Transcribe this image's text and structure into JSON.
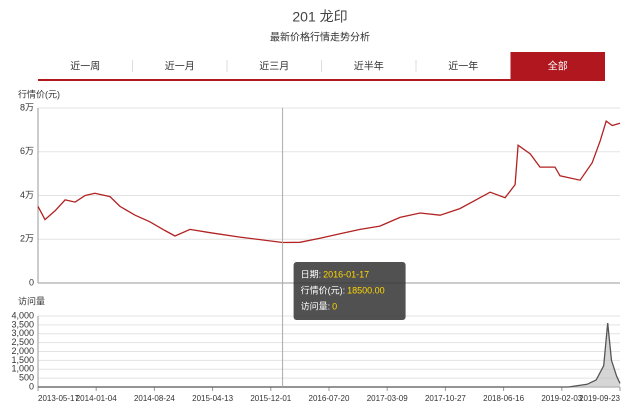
{
  "header": {
    "title": "201 龙印",
    "subtitle": "最新价格行情走势分析"
  },
  "tabs": [
    "近一周",
    "近一月",
    "近三月",
    "近半年",
    "近一年",
    "全部"
  ],
  "active_tab": 5,
  "tooltip": {
    "rows": [
      {
        "label": "日期:",
        "value": "2016-01-17"
      },
      {
        "label": "行情价(元):",
        "value": "18500.00"
      },
      {
        "label": "访问量:",
        "value": "0"
      }
    ]
  },
  "chart_data": [
    {
      "type": "line",
      "y_label": "行情价(元)",
      "color": "#b22222",
      "grid": true,
      "xlim": [
        "2013-05-17",
        "2019-09-23"
      ],
      "ylim": [
        0,
        80000
      ],
      "yticks": [
        0,
        {
          "value": 20000,
          "label": "2万"
        },
        {
          "value": 40000,
          "label": "4万"
        },
        {
          "value": 60000,
          "label": "6万"
        },
        {
          "value": 80000,
          "label": "8万"
        }
      ],
      "x": [
        "2013-05-17",
        "2013-06-14",
        "2013-07-24",
        "2013-09-02",
        "2013-10-12",
        "2013-11-21",
        "2013-12-30",
        "2014-02-28",
        "2014-04-09",
        "2014-06-08",
        "2014-08-06",
        "2014-10-05",
        "2014-11-14",
        "2015-01-13",
        "2015-04-03",
        "2015-07-31",
        "2016-01-17",
        "2016-03-26",
        "2016-06-14",
        "2016-09-02",
        "2016-11-21",
        "2017-02-08",
        "2017-04-29",
        "2017-07-18",
        "2017-10-06",
        "2017-12-24",
        "2018-03-14",
        "2018-04-23",
        "2018-06-22",
        "2018-08-01",
        "2018-08-13",
        "2018-09-30",
        "2018-11-08",
        "2019-01-07",
        "2019-01-27",
        "2019-04-17",
        "2019-06-04",
        "2019-07-06",
        "2019-07-30",
        "2019-08-23",
        "2019-09-23"
      ],
      "values": [
        35000,
        29000,
        33000,
        38000,
        37000,
        40000,
        41000,
        39500,
        35000,
        31000,
        28000,
        24000,
        21500,
        24500,
        23000,
        21000,
        18500,
        18600,
        20500,
        22500,
        24500,
        26000,
        30000,
        32000,
        31000,
        34000,
        39000,
        41500,
        39000,
        45000,
        63000,
        59000,
        53000,
        53000,
        49000,
        47000,
        55000,
        65000,
        74000,
        72000,
        73000
      ]
    },
    {
      "type": "line",
      "y_label": "访问量",
      "color": "#555555",
      "area": true,
      "grid": true,
      "xlim": [
        "2013-05-17",
        "2019-09-23"
      ],
      "xticks": [
        "2013-05-17",
        "2014-01-04",
        "2014-08-24",
        "2015-04-13",
        "2015-12-01",
        "2016-07-20",
        "2017-03-09",
        "2017-10-27",
        "2018-06-16",
        "2019-02-03",
        "2019-09-23"
      ],
      "ylim": [
        0,
        4000
      ],
      "yticks": [
        0,
        500,
        {
          "value": 1000,
          "label": "1,000"
        },
        {
          "value": 1500,
          "label": "1,500"
        },
        {
          "value": 2000,
          "label": "2,000"
        },
        {
          "value": 2500,
          "label": "2,500"
        },
        {
          "value": 3000,
          "label": "3,000"
        },
        {
          "value": 3500,
          "label": "3,500"
        },
        {
          "value": 4000,
          "label": "4,000"
        }
      ],
      "x": [
        "2013-05-17",
        "2019-03-01",
        "2019-05-15",
        "2019-06-20",
        "2019-07-20",
        "2019-08-05",
        "2019-08-20",
        "2019-09-10",
        "2019-09-23"
      ],
      "values": [
        0,
        0,
        150,
        400,
        1200,
        3600,
        1500,
        600,
        200
      ]
    }
  ]
}
